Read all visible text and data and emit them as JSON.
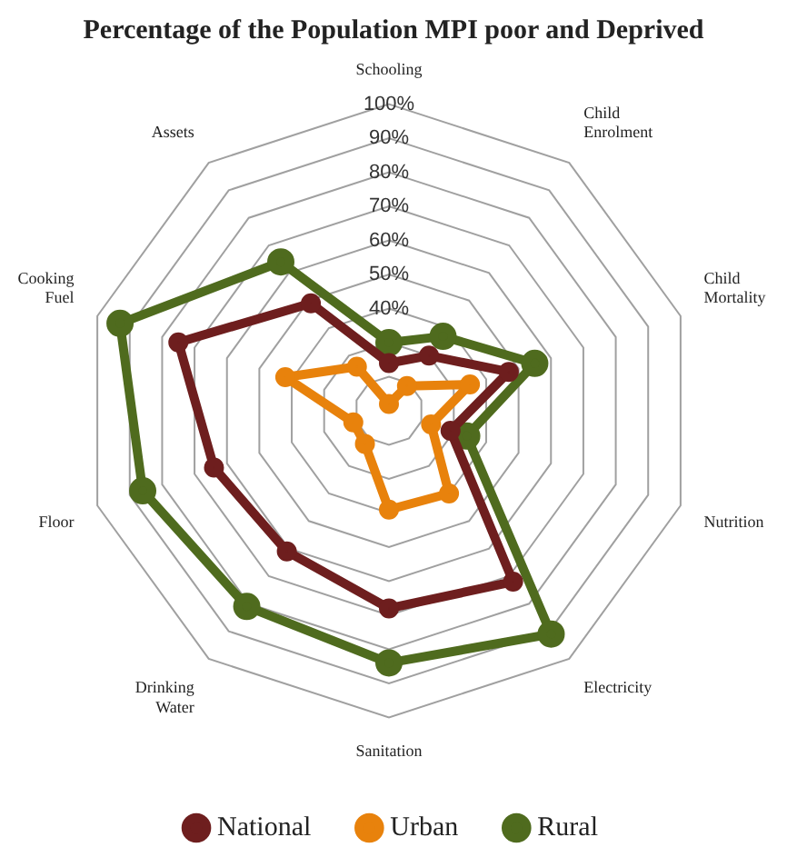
{
  "chart_data": {
    "type": "radar",
    "title": "Percentage of the Population MPI poor and Deprived",
    "categories": [
      "Schooling",
      "Child Enrolment",
      "Child Mortality",
      "Nutrition",
      "Electricity",
      "Sanitation",
      "Drinking Water",
      "Floor",
      "Cooking Fuel",
      "Assets"
    ],
    "series": [
      {
        "name": "National",
        "color": "#6e1e1e",
        "values": [
          24,
          30,
          47,
          29,
          72,
          68,
          61,
          64,
          75,
          49
        ]
      },
      {
        "name": "Urban",
        "color": "#e8820c",
        "values": [
          12,
          19,
          35,
          23,
          40,
          39,
          22,
          21,
          42,
          26
        ]
      },
      {
        "name": "Rural",
        "color": "#4f6b1e",
        "values": [
          30,
          37,
          55,
          34,
          91,
          84,
          81,
          86,
          93,
          64
        ]
      }
    ],
    "ylim": [
      10,
      100
    ],
    "yticks": [
      {
        "value": 40,
        "label": "40%"
      },
      {
        "value": 50,
        "label": "50%"
      },
      {
        "value": 60,
        "label": "60%"
      },
      {
        "value": 70,
        "label": "70%"
      },
      {
        "value": 80,
        "label": "80%"
      },
      {
        "value": 90,
        "label": "90%"
      },
      {
        "value": 100,
        "label": "100%"
      }
    ],
    "grid": true,
    "legend": "bottom",
    "marker": "circle"
  }
}
